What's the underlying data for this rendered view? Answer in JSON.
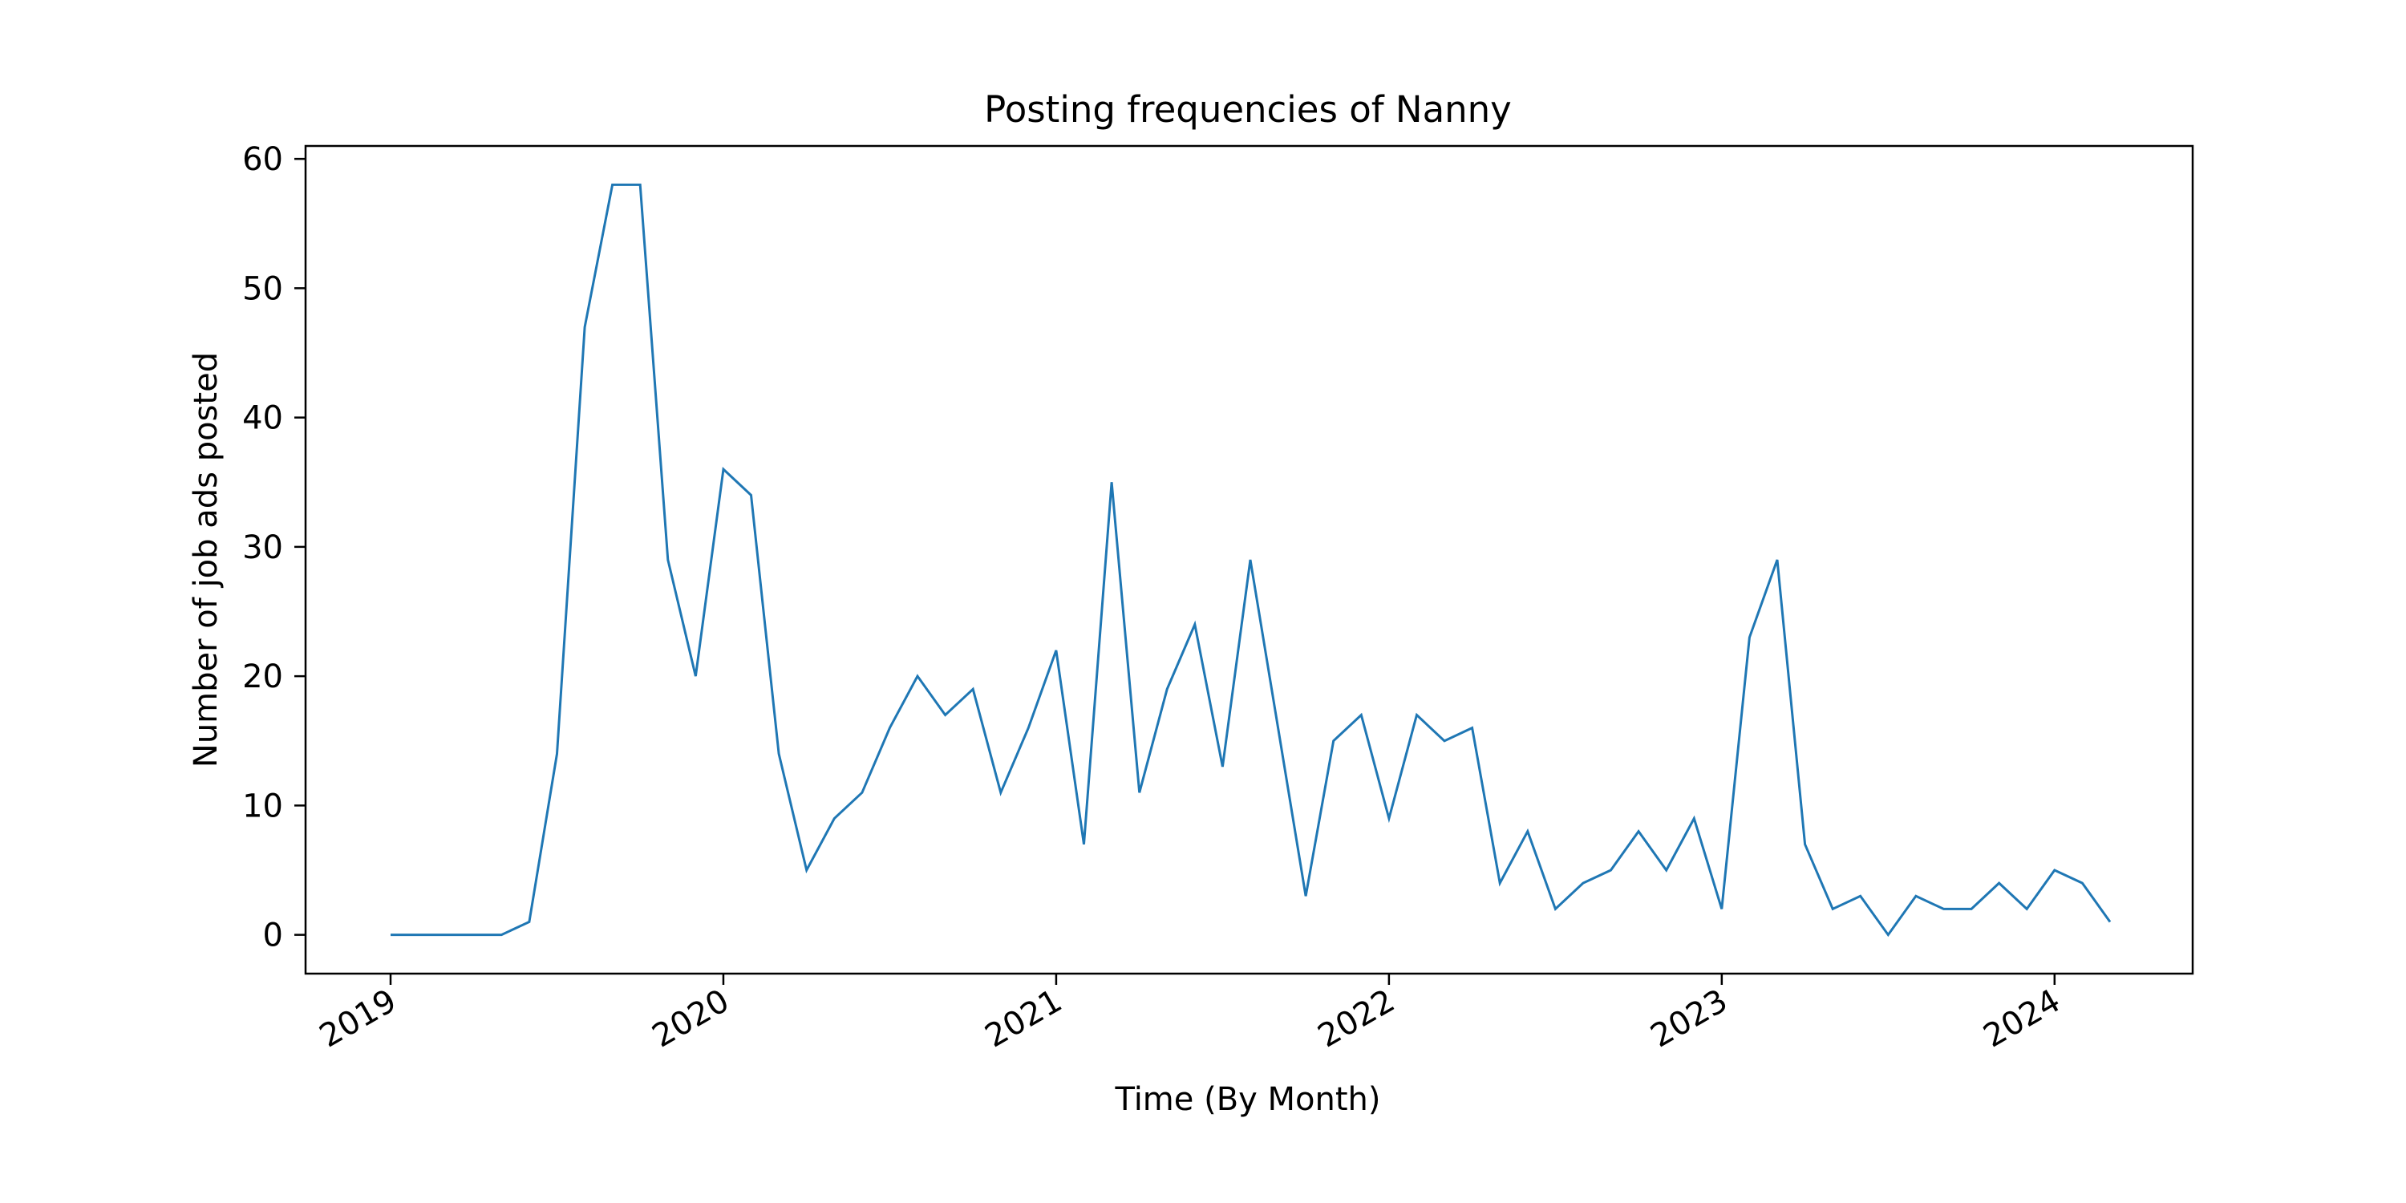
{
  "chart_data": {
    "type": "line",
    "title": "Posting frequencies of Nanny",
    "xlabel": "Time (By Month)",
    "ylabel": "Number of job ads posted",
    "ylim": [
      -3,
      61
    ],
    "yticks": [
      0,
      10,
      20,
      30,
      40,
      50,
      60
    ],
    "xticks": [
      "2019",
      "2020",
      "2021",
      "2022",
      "2023",
      "2024"
    ],
    "grid": false,
    "line_color": "#1f77b4",
    "series": [
      {
        "x": [
          "2019-01",
          "2019-02",
          "2019-03",
          "2019-04",
          "2019-05",
          "2019-06",
          "2019-07",
          "2019-08",
          "2019-09",
          "2019-10",
          "2019-11",
          "2019-12",
          "2020-01",
          "2020-02",
          "2020-03",
          "2020-04",
          "2020-05",
          "2020-06",
          "2020-07",
          "2020-08",
          "2020-09",
          "2020-10",
          "2020-11",
          "2020-12",
          "2021-01",
          "2021-02",
          "2021-03",
          "2021-04",
          "2021-05",
          "2021-06",
          "2021-07",
          "2021-08",
          "2021-09",
          "2021-10",
          "2021-11",
          "2021-12",
          "2022-01",
          "2022-02",
          "2022-03",
          "2022-04",
          "2022-05",
          "2022-06",
          "2022-07",
          "2022-08",
          "2022-09",
          "2022-10",
          "2022-11",
          "2022-12",
          "2023-01",
          "2023-02",
          "2023-03",
          "2023-04",
          "2023-05",
          "2023-06",
          "2023-07",
          "2023-08",
          "2023-09",
          "2023-10",
          "2023-11",
          "2023-12",
          "2024-01",
          "2024-02",
          "2024-03"
        ],
        "values": [
          0,
          0,
          0,
          0,
          0,
          1,
          14,
          47,
          58,
          58,
          29,
          20,
          36,
          34,
          14,
          5,
          9,
          11,
          16,
          20,
          17,
          19,
          11,
          16,
          22,
          7,
          35,
          11,
          19,
          24,
          13,
          29,
          16,
          3,
          15,
          17,
          9,
          17,
          15,
          16,
          4,
          8,
          2,
          4,
          5,
          8,
          5,
          9,
          2,
          23,
          29,
          7,
          2,
          3,
          0,
          3,
          2,
          2,
          4,
          2,
          5,
          4,
          1
        ]
      }
    ]
  }
}
